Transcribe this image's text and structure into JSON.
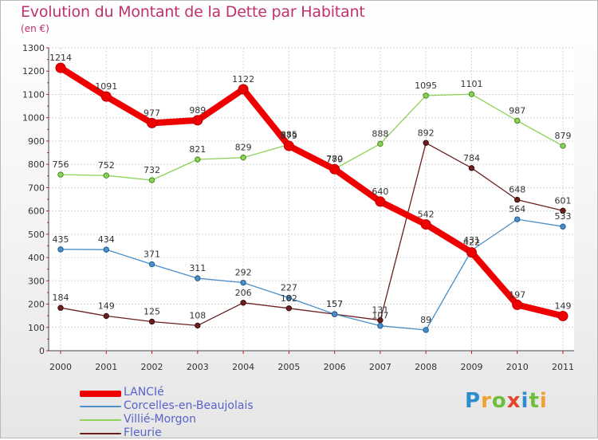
{
  "chart_data": {
    "type": "line",
    "title": "Evolution du Montant de la Dette par Habitant",
    "unit_label": "(en €)",
    "x": [
      "2000",
      "2001",
      "2002",
      "2003",
      "2004",
      "2005",
      "2006",
      "2007",
      "2008",
      "2009",
      "2010",
      "2011"
    ],
    "ylim": [
      0,
      1300
    ],
    "yticks": [
      0,
      100,
      200,
      300,
      400,
      500,
      600,
      700,
      800,
      900,
      1000,
      1100,
      1200,
      1300
    ],
    "grid": true,
    "legend_position": "bottom-left",
    "series": [
      {
        "name": "LANCIé",
        "color": "#ee0000",
        "values": [
          1214,
          1091,
          977,
          989,
          1122,
          879,
          779,
          640,
          542,
          422,
          197,
          149
        ]
      },
      {
        "name": "Corcelles-en-Beaujolais",
        "color": "#4a8fc9",
        "values": [
          435,
          434,
          371,
          311,
          292,
          227,
          157,
          107,
          89,
          431,
          564,
          533
        ]
      },
      {
        "name": "Villié-Morgon",
        "color": "#8fd15a",
        "values": [
          756,
          752,
          732,
          821,
          829,
          885,
          780,
          888,
          1095,
          1101,
          987,
          879
        ]
      },
      {
        "name": "Fleurie",
        "color": "#6b1f1f",
        "values": [
          184,
          149,
          125,
          108,
          206,
          182,
          157,
          131,
          892,
          784,
          648,
          601
        ]
      }
    ]
  },
  "brand": {
    "letters": [
      "P",
      "r",
      "o",
      "x",
      "i",
      "t",
      "i"
    ],
    "colors": [
      "#2d8ecf",
      "#f0a22f",
      "#6fbe3b",
      "#e6452b",
      "#2d8ecf",
      "#6fbe3b",
      "#f0a22f"
    ]
  }
}
